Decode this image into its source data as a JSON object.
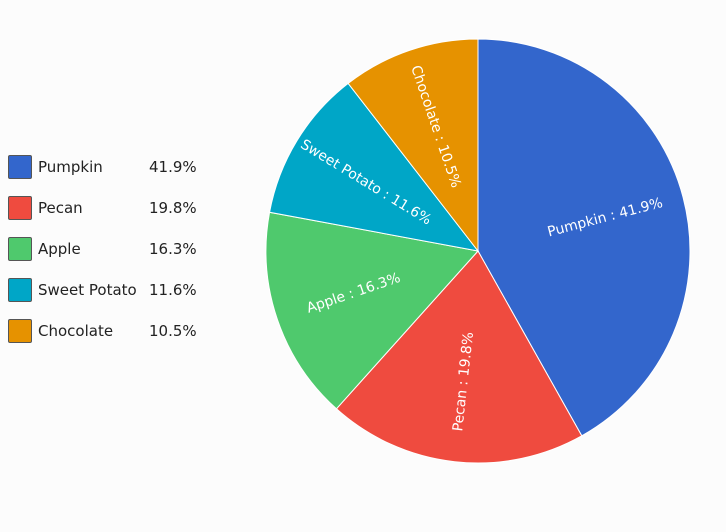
{
  "chart_data": {
    "type": "pie",
    "categories": [
      "Pumpkin",
      "Pecan",
      "Apple",
      "Sweet Potato",
      "Chocolate"
    ],
    "values": [
      41.9,
      19.8,
      16.3,
      11.6,
      10.5
    ],
    "percent_labels": [
      "41.9%",
      "19.8%",
      "16.3%",
      "11.6%",
      "10.5%"
    ],
    "slice_labels": [
      "Pumpkin : 41.9%",
      "Pecan : 19.8%",
      "Apple : 16.3%",
      "Sweet Potato : 11.6%",
      "Chocolate : 10.5%"
    ],
    "colors": [
      "#3366cc",
      "#ef4b3f",
      "#4fc96d",
      "#00a6c7",
      "#e69200"
    ],
    "legend_position": "left",
    "title": "",
    "start": "top",
    "direction": "clockwise"
  }
}
